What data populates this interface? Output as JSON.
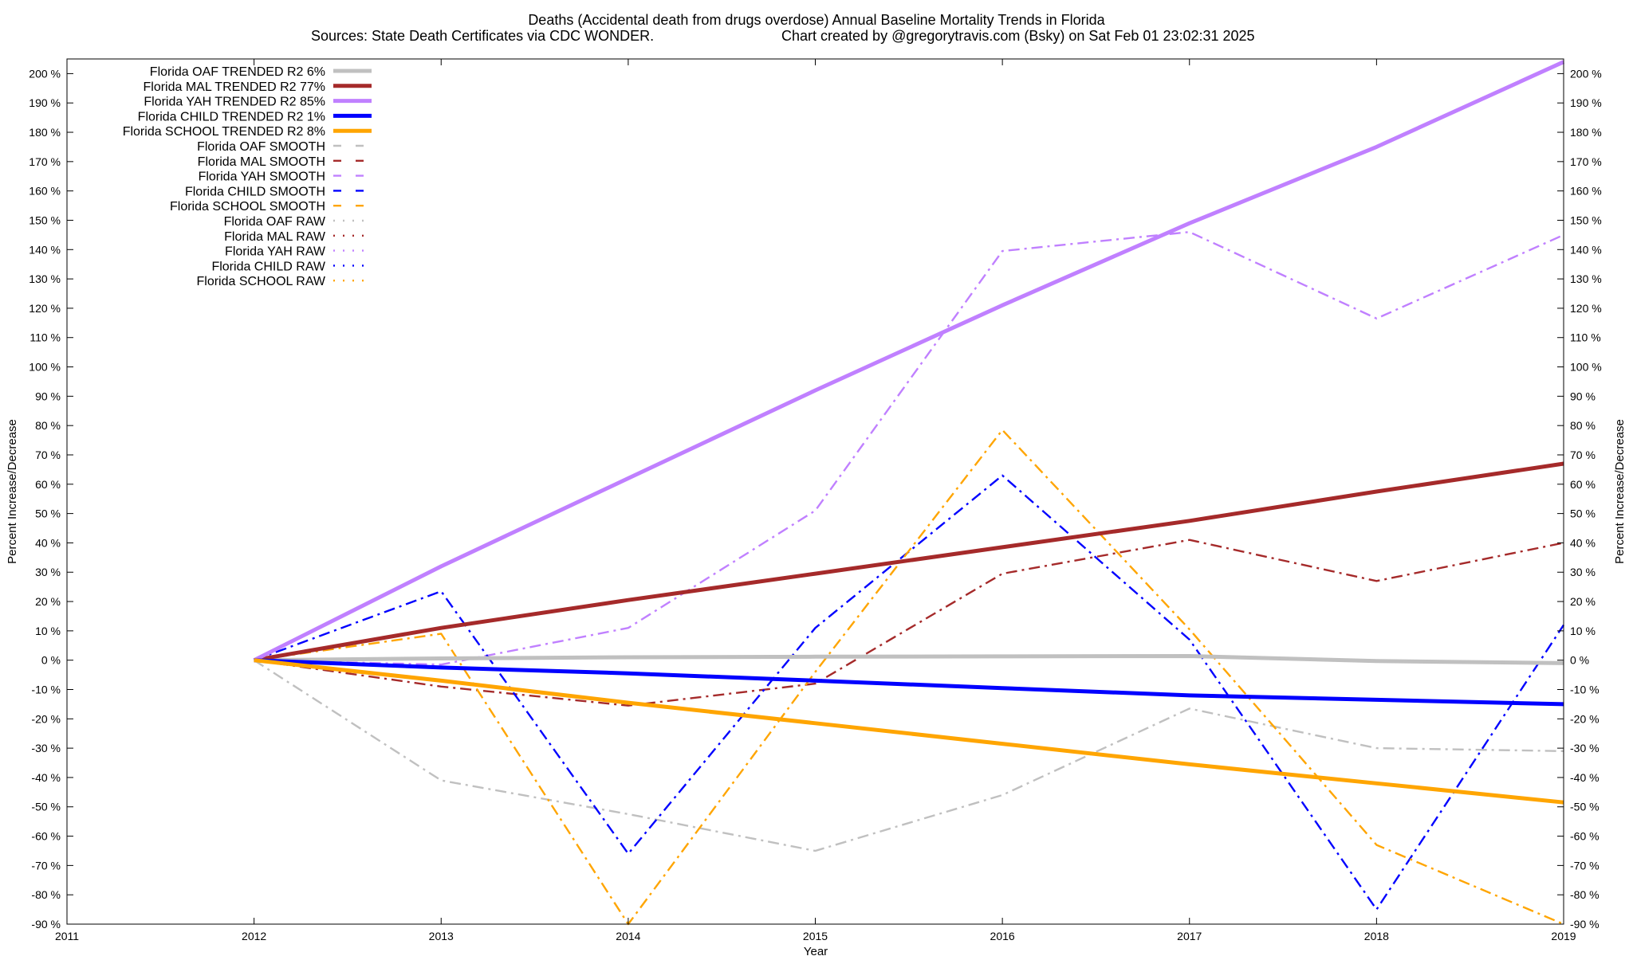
{
  "chart_data": {
    "type": "line",
    "title": "Deaths (Accidental death from drugs overdose)  Annual Baseline Mortality Trends in Florida",
    "subtitle_left": "Sources: State Death Certificates via CDC WONDER.",
    "subtitle_right": "Chart created by @gregorytravis.com (Bsky) on Sat Feb 01 23:02:31 2025",
    "xlabel": "Year",
    "ylabel": "Percent Increase/Decrease",
    "ylabel_right": "Percent Increase/Decrease",
    "xlim": [
      2011,
      2019
    ],
    "ylim": [
      -90,
      205
    ],
    "x_ticks": [
      "2011",
      "2012",
      "2013",
      "2014",
      "2015",
      "2016",
      "2017",
      "2018",
      "2019"
    ],
    "y_ticks": [
      "200 %",
      "190 %",
      "180 %",
      "170 %",
      "160 %",
      "150 %",
      "140 %",
      "130 %",
      "120 %",
      "110 %",
      "100 %",
      "90 %",
      "80 %",
      "70 %",
      "60 %",
      "50 %",
      "40 %",
      "30 %",
      "20 %",
      "10 %",
      "0 %",
      "-10 %",
      "-20 %",
      "-30 %",
      "-40 %",
      "-50 %",
      "-60 %",
      "-70 %",
      "-80 %",
      "-90 %"
    ],
    "grid": false,
    "legend_position": "top-left",
    "series": [
      {
        "name": "Florida OAF TRENDED R2  6%",
        "style": "solid",
        "color": "#c0c0c0",
        "x": [
          2012,
          2013,
          2014,
          2015,
          2016,
          2017,
          2018,
          2019
        ],
        "values": [
          0,
          0.6,
          1.0,
          1.2,
          1.3,
          1.4,
          -0.3,
          -1.0
        ]
      },
      {
        "name": "Florida MAL TRENDED R2  77%",
        "style": "solid",
        "color": "#a52a2a",
        "x": [
          2012,
          2013,
          2014,
          2015,
          2016,
          2017,
          2018,
          2019
        ],
        "values": [
          0,
          11,
          20.5,
          29.5,
          38.5,
          47.5,
          57.5,
          67
        ]
      },
      {
        "name": "Florida YAH TRENDED R2  85%",
        "style": "solid",
        "color": "#c080ff",
        "x": [
          2012,
          2013,
          2014,
          2015,
          2016,
          2017,
          2018,
          2019
        ],
        "values": [
          0,
          32,
          62,
          92,
          121,
          149,
          175,
          204
        ]
      },
      {
        "name": "Florida CHILD TRENDED R2  1%",
        "style": "solid",
        "color": "#0000ff",
        "x": [
          2012,
          2013,
          2014,
          2015,
          2016,
          2017,
          2018,
          2019
        ],
        "values": [
          0,
          -2.5,
          -4.5,
          -7,
          -9.5,
          -12,
          -13.5,
          -15
        ]
      },
      {
        "name": "Florida SCHOOL TRENDED R2  8%",
        "style": "solid",
        "color": "#ffa500",
        "x": [
          2012,
          2013,
          2014,
          2015,
          2016,
          2017,
          2018,
          2019
        ],
        "values": [
          0,
          -7,
          -14.5,
          -21.5,
          -28.5,
          -35.5,
          -42,
          -48.5
        ]
      },
      {
        "name": "Florida OAF SMOOTH",
        "style": "dashdot",
        "color": "#c0c0c0",
        "x": [
          2012,
          2013,
          2014,
          2015,
          2016,
          2017,
          2018,
          2019
        ],
        "values": [
          0,
          -41,
          -52.5,
          -65,
          -46,
          -16.5,
          -30,
          -31
        ]
      },
      {
        "name": "Florida MAL SMOOTH",
        "style": "dashdot",
        "color": "#a52a2a",
        "x": [
          2012,
          2013,
          2014,
          2015,
          2016,
          2017,
          2018,
          2019
        ],
        "values": [
          0,
          -9,
          -15.5,
          -8,
          29.5,
          41,
          27,
          40
        ]
      },
      {
        "name": "Florida YAH SMOOTH",
        "style": "dashdot",
        "color": "#c080ff",
        "x": [
          2012,
          2013,
          2014,
          2015,
          2016,
          2017,
          2018,
          2019
        ],
        "values": [
          0,
          -1.5,
          11,
          51,
          139.5,
          146,
          116.5,
          145
        ]
      },
      {
        "name": "Florida CHILD SMOOTH",
        "style": "dashdot",
        "color": "#0000ff",
        "x": [
          2012,
          2013,
          2014,
          2015,
          2016,
          2017,
          2018,
          2019
        ],
        "values": [
          0,
          23.5,
          -66,
          11,
          63,
          7,
          -85,
          12
        ]
      },
      {
        "name": "Florida SCHOOL SMOOTH",
        "style": "dashdot",
        "color": "#ffa500",
        "x": [
          2012,
          2013,
          2014,
          2015,
          2016,
          2017,
          2018,
          2019
        ],
        "values": [
          0,
          9,
          -90,
          -4,
          78.5,
          10.5,
          -63,
          -90
        ]
      },
      {
        "name": "Florida OAF RAW",
        "style": "dotted",
        "color": "#c0c0c0",
        "x": [],
        "values": []
      },
      {
        "name": "Florida MAL RAW",
        "style": "dotted",
        "color": "#a52a2a",
        "x": [],
        "values": []
      },
      {
        "name": "Florida YAH RAW",
        "style": "dotted",
        "color": "#c080ff",
        "x": [],
        "values": []
      },
      {
        "name": "Florida CHILD RAW",
        "style": "dotted",
        "color": "#0000ff",
        "x": [],
        "values": []
      },
      {
        "name": "Florida SCHOOL RAW",
        "style": "dotted",
        "color": "#ffa500",
        "x": [],
        "values": []
      }
    ]
  }
}
